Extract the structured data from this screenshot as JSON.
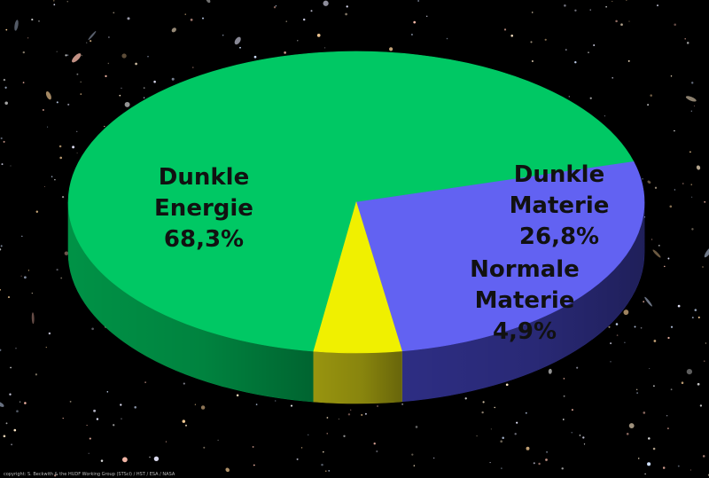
{
  "chart_data": {
    "type": "pie",
    "style": "3d",
    "background": "deep-field-starfield",
    "labels": [
      "Dunkle Energie",
      "Dunkle Materie",
      "Normale Materie"
    ],
    "values": [
      68.3,
      26.8,
      4.9
    ],
    "unit": "%",
    "slices": [
      {
        "key": "energie",
        "lines": [
          "Dunkle",
          "Energie",
          "68,3%"
        ],
        "value": 68.3,
        "color": "#00c864",
        "side_color": "#009a4a"
      },
      {
        "key": "materie",
        "lines": [
          "Dunkle",
          "Materie",
          "26,8%"
        ],
        "value": 26.8,
        "color": "#6262f2",
        "side_color": "#30308a"
      },
      {
        "key": "normal",
        "lines": [
          "Normale",
          "Materie",
          "4,9%"
        ],
        "value": 4.9,
        "color": "#f0f000",
        "side_color": "#a09c10"
      }
    ]
  },
  "credit": "copyright: S. Beckwith & the HUDF Working Group (STScI) / HST / ESA / NASA"
}
